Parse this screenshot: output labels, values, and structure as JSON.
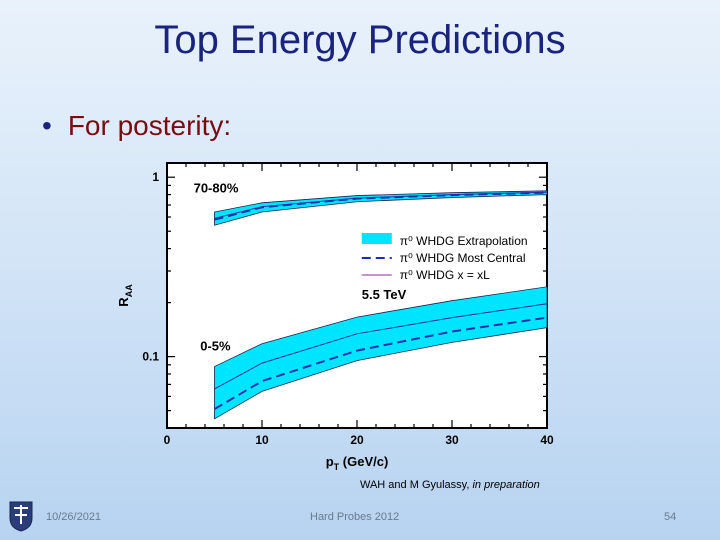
{
  "slide": {
    "title": "Top Energy Predictions",
    "bullet": "For posterity:",
    "citation_authors": "WAH and M Gyulassy, ",
    "citation_status": "in preparation",
    "footer_date": "10/26/2021",
    "footer_center": "Hard Probes 2012",
    "page_number": "54",
    "colors": {
      "title": "#1a237e",
      "bullet_text": "#7a0b12",
      "band": "#00e5ff",
      "line": "#1a2fb0"
    }
  },
  "chart_data": {
    "type": "line",
    "title": "",
    "xlabel": "pT (GeV/c)",
    "ylabel": "RAA",
    "xlim": [
      0,
      40
    ],
    "ylim": [
      0.04,
      1.2
    ],
    "yscale": "log",
    "x_ticks": [
      "0",
      "10",
      "20",
      "30",
      "40"
    ],
    "y_ticks": [
      "1",
      "0.1"
    ],
    "y_tick_values": [
      1,
      0.1
    ],
    "energy_label": "5.5 TeV",
    "annotations": [
      "70-80%",
      "0-5%"
    ],
    "legend": [
      {
        "symbol": "π⁰",
        "label": "WHDG Extrapolation",
        "style": "band"
      },
      {
        "symbol": "π⁰",
        "label": "WHDG Most Central",
        "style": "dashed"
      },
      {
        "symbol": "π⁰",
        "label": "WHDG x = xL",
        "style": "thin"
      }
    ],
    "groups": [
      {
        "name": "70-80%",
        "x": [
          5,
          10,
          20,
          30,
          40
        ],
        "band_upper": [
          0.64,
          0.72,
          0.79,
          0.82,
          0.84
        ],
        "band_lower": [
          0.54,
          0.64,
          0.73,
          0.77,
          0.8
        ],
        "most_central": [
          0.58,
          0.68,
          0.76,
          0.795,
          0.82
        ],
        "x_equals_xL": [
          0.59,
          0.685,
          0.765,
          0.8,
          0.825
        ]
      },
      {
        "name": "0-5%",
        "x": [
          5,
          10,
          20,
          30,
          40
        ],
        "band_upper": [
          0.088,
          0.118,
          0.166,
          0.205,
          0.245
        ],
        "band_lower": [
          0.045,
          0.064,
          0.095,
          0.12,
          0.145
        ],
        "most_central": [
          0.051,
          0.073,
          0.108,
          0.138,
          0.165
        ],
        "x_equals_xL": [
          0.066,
          0.092,
          0.134,
          0.165,
          0.197
        ]
      }
    ]
  }
}
